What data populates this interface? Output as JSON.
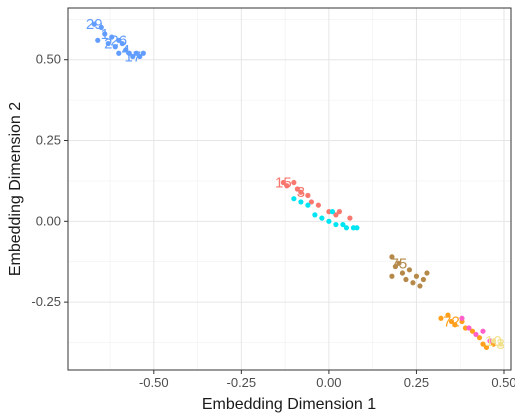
{
  "chart_data": {
    "type": "scatter",
    "title": "",
    "xlabel": "Embedding Dimension 1",
    "ylabel": "Embedding Dimension 2",
    "xlim": [
      -0.745,
      0.52
    ],
    "ylim": [
      -0.46,
      0.66
    ],
    "x_ticks": [
      {
        "value": -0.5,
        "label": "-0.50"
      },
      {
        "value": -0.25,
        "label": "-0.25"
      },
      {
        "value": 0.0,
        "label": "0.00"
      },
      {
        "value": 0.25,
        "label": "0.25"
      },
      {
        "value": 0.5,
        "label": "0.50"
      }
    ],
    "y_ticks": [
      {
        "value": 0.5,
        "label": "0.50"
      },
      {
        "value": 0.25,
        "label": "0.25"
      },
      {
        "value": 0.0,
        "label": "0.00"
      },
      {
        "value": -0.25,
        "label": "-0.25"
      }
    ],
    "grid": true,
    "legend": "none",
    "series": [
      {
        "color": "#619cff",
        "points": [
          {
            "x": -0.67,
            "y": 0.61,
            "label": "29"
          },
          {
            "x": -0.66,
            "y": 0.56
          },
          {
            "x": -0.65,
            "y": 0.6
          },
          {
            "x": -0.64,
            "y": 0.58,
            "label": "1"
          },
          {
            "x": -0.63,
            "y": 0.55,
            "label": "2"
          },
          {
            "x": -0.62,
            "y": 0.57
          },
          {
            "x": -0.61,
            "y": 0.54
          },
          {
            "x": -0.6,
            "y": 0.52
          },
          {
            "x": -0.6,
            "y": 0.56,
            "label": "26"
          },
          {
            "x": -0.59,
            "y": 0.55
          },
          {
            "x": -0.58,
            "y": 0.53,
            "label": "4"
          },
          {
            "x": -0.57,
            "y": 0.52
          },
          {
            "x": -0.56,
            "y": 0.51,
            "label": "17"
          },
          {
            "x": -0.55,
            "y": 0.52
          },
          {
            "x": -0.54,
            "y": 0.51
          },
          {
            "x": -0.53,
            "y": 0.52
          }
        ]
      },
      {
        "color": "#f8766d",
        "points": [
          {
            "x": -0.13,
            "y": 0.12,
            "label": "15"
          },
          {
            "x": -0.12,
            "y": 0.11
          },
          {
            "x": -0.1,
            "y": 0.12
          },
          {
            "x": -0.09,
            "y": 0.1
          },
          {
            "x": -0.08,
            "y": 0.09,
            "label": "3"
          },
          {
            "x": -0.06,
            "y": 0.08
          },
          {
            "x": -0.05,
            "y": 0.06
          },
          {
            "x": -0.03,
            "y": 0.05
          },
          {
            "x": 0.0,
            "y": 0.03
          },
          {
            "x": 0.02,
            "y": 0.02
          },
          {
            "x": 0.03,
            "y": 0.03
          },
          {
            "x": 0.06,
            "y": 0.01
          }
        ]
      },
      {
        "color": "#00e5f2",
        "points": [
          {
            "x": -0.1,
            "y": 0.07
          },
          {
            "x": -0.08,
            "y": 0.06
          },
          {
            "x": -0.06,
            "y": 0.05
          },
          {
            "x": -0.04,
            "y": 0.02
          },
          {
            "x": -0.02,
            "y": 0.01
          },
          {
            "x": 0.0,
            "y": 0.0
          },
          {
            "x": 0.01,
            "y": 0.03
          },
          {
            "x": 0.02,
            "y": -0.01
          },
          {
            "x": 0.04,
            "y": -0.01
          },
          {
            "x": 0.05,
            "y": -0.02
          },
          {
            "x": 0.07,
            "y": -0.02
          },
          {
            "x": 0.08,
            "y": -0.02
          }
        ]
      },
      {
        "color": "#b5894a",
        "points": [
          {
            "x": 0.18,
            "y": -0.11
          },
          {
            "x": 0.19,
            "y": -0.14
          },
          {
            "x": 0.18,
            "y": -0.17
          },
          {
            "x": 0.2,
            "y": -0.13,
            "label": "75"
          },
          {
            "x": 0.21,
            "y": -0.16
          },
          {
            "x": 0.22,
            "y": -0.18
          },
          {
            "x": 0.23,
            "y": -0.15
          },
          {
            "x": 0.24,
            "y": -0.19
          },
          {
            "x": 0.25,
            "y": -0.17
          },
          {
            "x": 0.26,
            "y": -0.2
          },
          {
            "x": 0.27,
            "y": -0.18
          },
          {
            "x": 0.28,
            "y": -0.16
          }
        ]
      },
      {
        "color": "#ff9f1c",
        "points": [
          {
            "x": 0.32,
            "y": -0.3
          },
          {
            "x": 0.34,
            "y": -0.29
          },
          {
            "x": 0.35,
            "y": -0.31,
            "label": "72"
          },
          {
            "x": 0.36,
            "y": -0.32
          },
          {
            "x": 0.38,
            "y": -0.31
          },
          {
            "x": 0.39,
            "y": -0.33
          },
          {
            "x": 0.41,
            "y": -0.34
          },
          {
            "x": 0.43,
            "y": -0.36
          },
          {
            "x": 0.44,
            "y": -0.38
          },
          {
            "x": 0.45,
            "y": -0.39
          },
          {
            "x": 0.47,
            "y": -0.38
          }
        ]
      },
      {
        "color": "#ff61c9",
        "points": [
          {
            "x": 0.38,
            "y": -0.3
          },
          {
            "x": 0.4,
            "y": -0.33
          },
          {
            "x": 0.42,
            "y": -0.35
          },
          {
            "x": 0.44,
            "y": -0.34
          },
          {
            "x": 0.46,
            "y": -0.37
          }
        ]
      },
      {
        "color": "#f2e18c",
        "points": [
          {
            "x": 0.47,
            "y": -0.37,
            "label": "10"
          },
          {
            "x": 0.49,
            "y": -0.38,
            "label": "3"
          }
        ]
      }
    ]
  }
}
